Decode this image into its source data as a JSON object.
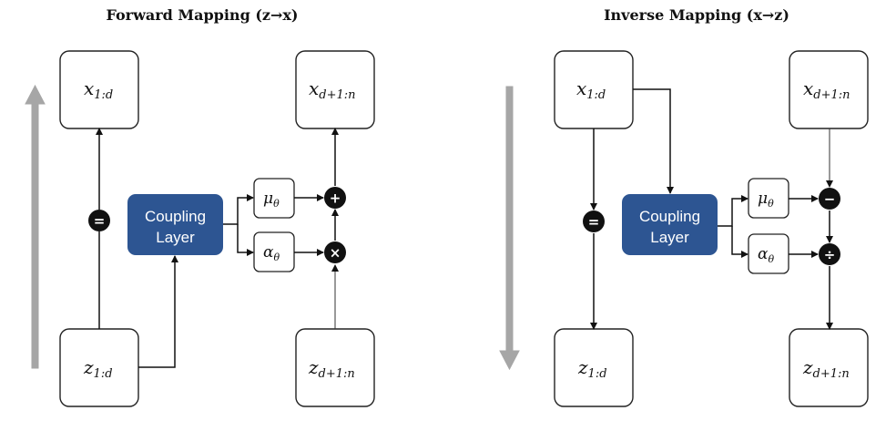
{
  "panels": {
    "forward": {
      "title": "Forward Mapping (z→x)",
      "top_left": {
        "main": "x",
        "sub": "1:d"
      },
      "top_right": {
        "main": "x",
        "sub": "d+1:n"
      },
      "bottom_left": {
        "main": "z",
        "sub": "1:d"
      },
      "bottom_right": {
        "main": "z",
        "sub": "d+1:n"
      },
      "coupling": {
        "line1": "Coupling",
        "line2": "Layer"
      },
      "mu": {
        "main": "μ",
        "sub": "θ"
      },
      "alpha": {
        "main": "α",
        "sub": "θ"
      },
      "identity_op": "=",
      "upper_op": "+",
      "lower_op": "×"
    },
    "inverse": {
      "title": "Inverse Mapping (x→z)",
      "top_left": {
        "main": "x",
        "sub": "1:d"
      },
      "top_right": {
        "main": "x",
        "sub": "d+1:n"
      },
      "bottom_left": {
        "main": "z",
        "sub": "1:d"
      },
      "bottom_right": {
        "main": "z",
        "sub": "d+1:n"
      },
      "coupling": {
        "line1": "Coupling",
        "line2": "Layer"
      },
      "mu": {
        "main": "μ",
        "sub": "θ"
      },
      "alpha": {
        "main": "α",
        "sub": "θ"
      },
      "identity_op": "=",
      "upper_op": "−",
      "lower_op": "÷"
    }
  },
  "colors": {
    "coupling_fill": "#2d5592",
    "direction_arrow": "#a6a6a6",
    "operator_fill": "#111111"
  },
  "icons": {
    "forward_direction": "up-arrow-icon",
    "inverse_direction": "down-arrow-icon"
  }
}
